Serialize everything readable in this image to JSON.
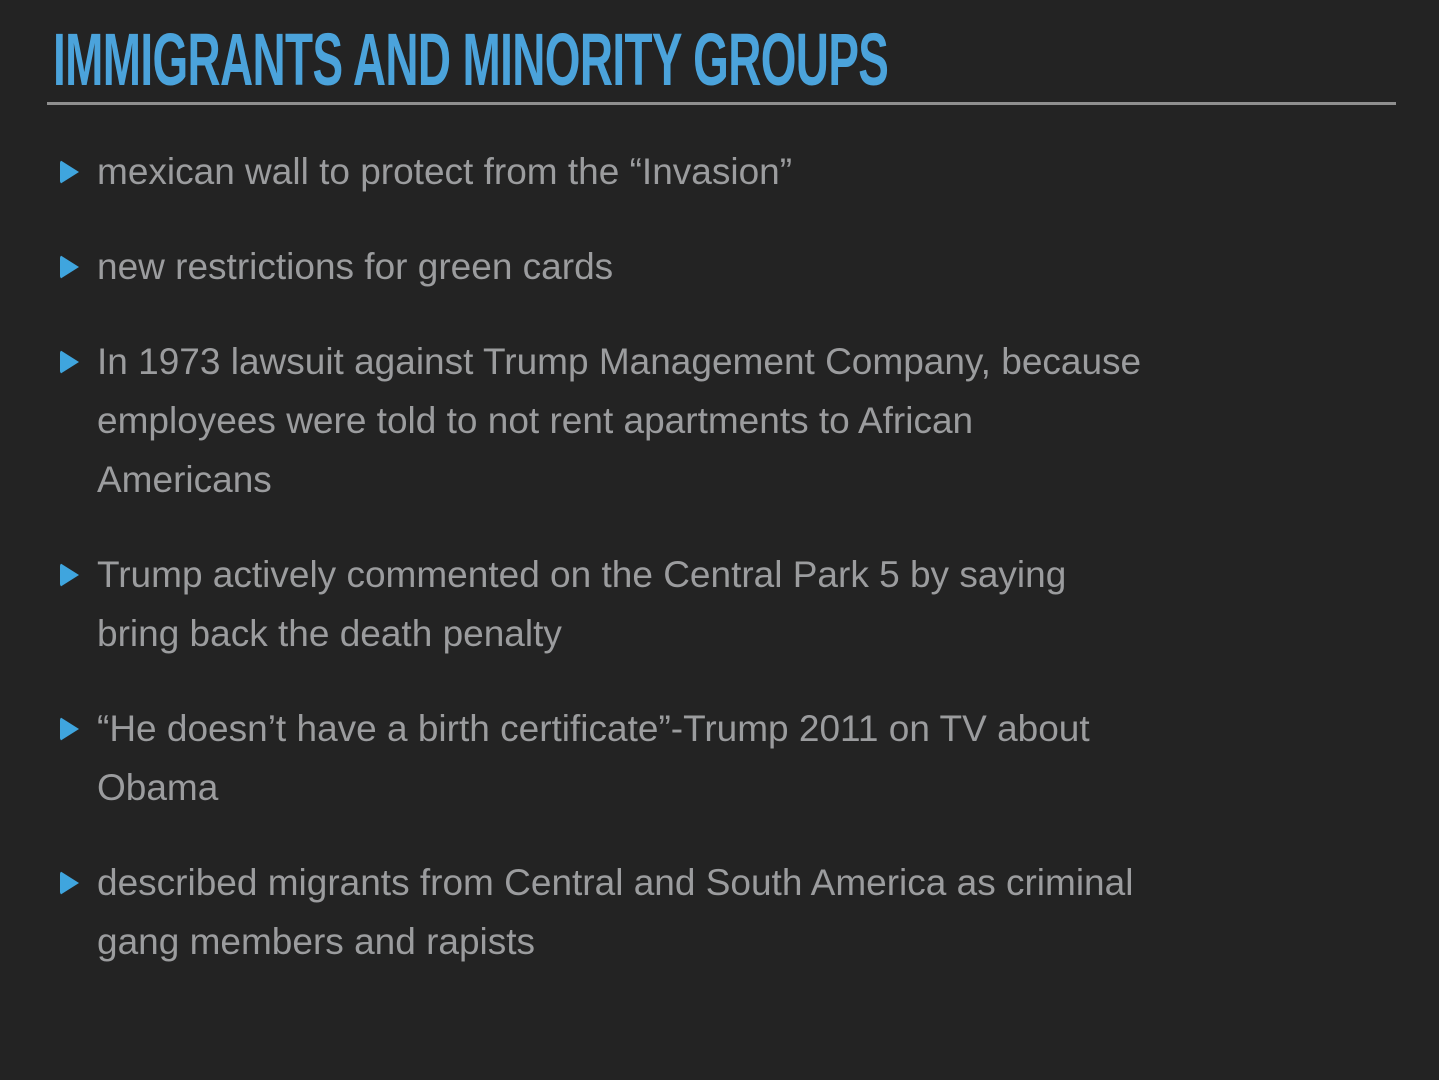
{
  "slide": {
    "title": "IMMIGRANTS AND MINORITY GROUPS",
    "bullets": [
      {
        "lines": [
          "mexican wall to protect from the “Invasion”"
        ]
      },
      {
        "lines": [
          "new restrictions for green cards"
        ]
      },
      {
        "lines": [
          "In 1973 lawsuit against Trump Management Company, because",
          "employees were told to not rent apartments to African",
          "Americans"
        ]
      },
      {
        "lines": [
          "Trump actively commented on the Central Park 5 by saying",
          "bring back the death penalty"
        ]
      },
      {
        "lines": [
          "“He doesn’t have a birth certificate”-Trump 2011 on TV about",
          "Obama"
        ]
      },
      {
        "lines": [
          "described migrants from Central and South America as criminal",
          "gang members and rapists"
        ]
      }
    ],
    "colors": {
      "background": "#232323",
      "title": "#4BA3DB",
      "bullet_marker": "#3FA5DE",
      "text": "#9b9c9e",
      "divider": "#8f8f8f"
    },
    "bullet_icon": "triangle-right-icon"
  }
}
